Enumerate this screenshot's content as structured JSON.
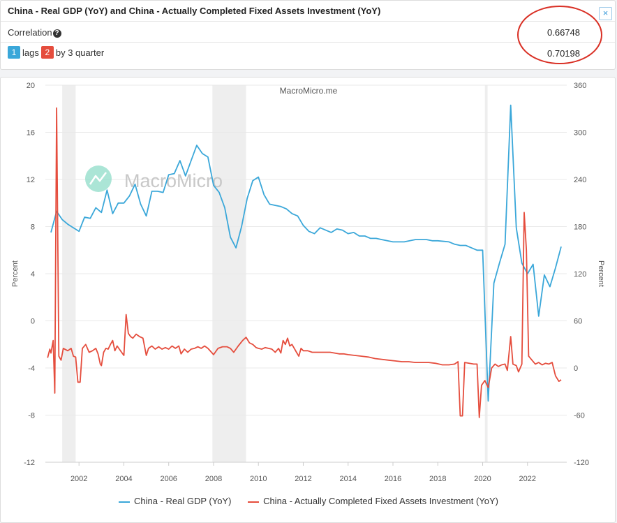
{
  "header": {
    "title": "China - Real GDP (YoY) and China - Actually Completed Fixed Assets Investment (YoY)",
    "close_label": "×",
    "correlation_label": "Correlation",
    "help_glyph": "?",
    "correlation_value": "0.66748",
    "lag_badge_1": "1",
    "lag_text_1": "lags",
    "lag_badge_2": "2",
    "lag_text_2": "by 3 quarter",
    "lag_value": "0.70198"
  },
  "colors": {
    "gdp": "#3aa7d9",
    "fai": "#e54d3d",
    "recession": "#eeeeee",
    "highlight": "#d93025"
  },
  "chart_data": {
    "type": "line",
    "watermark_top": "MacroMicro.me",
    "watermark_logo": "MacroMicro",
    "ylabel_left": "Percent",
    "ylabel_right": "Percent",
    "x_ticks": [
      "2002",
      "2004",
      "2006",
      "2008",
      "2010",
      "2012",
      "2014",
      "2016",
      "2018",
      "2020",
      "2022"
    ],
    "left_axis": {
      "min": -12,
      "max": 20,
      "ticks": [
        "-12",
        "-8",
        "-4",
        "0",
        "4",
        "8",
        "12",
        "16",
        "20"
      ]
    },
    "right_axis": {
      "min": -120,
      "max": 360,
      "ticks": [
        "-120",
        "-60",
        "0",
        "60",
        "120",
        "180",
        "240",
        "300",
        "360"
      ]
    },
    "recessions": [
      [
        2001.25,
        2001.85
      ],
      [
        2007.95,
        2009.45
      ],
      [
        2020.1,
        2020.22
      ]
    ],
    "series": [
      {
        "name": "China - Real GDP (YoY)",
        "axis": "left",
        "points": [
          [
            2000.75,
            7.5
          ],
          [
            2001.0,
            9.3
          ],
          [
            2001.25,
            8.6
          ],
          [
            2001.5,
            8.2
          ],
          [
            2001.75,
            7.9
          ],
          [
            2002.0,
            7.6
          ],
          [
            2002.25,
            8.8
          ],
          [
            2002.5,
            8.7
          ],
          [
            2002.75,
            9.6
          ],
          [
            2003.0,
            9.2
          ],
          [
            2003.25,
            11.1
          ],
          [
            2003.5,
            9.1
          ],
          [
            2003.75,
            10.0
          ],
          [
            2004.0,
            10.0
          ],
          [
            2004.25,
            10.6
          ],
          [
            2004.5,
            11.6
          ],
          [
            2004.75,
            9.9
          ],
          [
            2005.0,
            8.9
          ],
          [
            2005.25,
            11.0
          ],
          [
            2005.5,
            11.0
          ],
          [
            2005.75,
            10.9
          ],
          [
            2006.0,
            12.4
          ],
          [
            2006.25,
            12.5
          ],
          [
            2006.5,
            13.6
          ],
          [
            2006.75,
            12.3
          ],
          [
            2007.0,
            13.6
          ],
          [
            2007.25,
            14.9
          ],
          [
            2007.5,
            14.2
          ],
          [
            2007.75,
            13.9
          ],
          [
            2008.0,
            11.5
          ],
          [
            2008.25,
            10.9
          ],
          [
            2008.5,
            9.6
          ],
          [
            2008.75,
            7.1
          ],
          [
            2009.0,
            6.2
          ],
          [
            2009.25,
            8.0
          ],
          [
            2009.5,
            10.4
          ],
          [
            2009.75,
            11.9
          ],
          [
            2010.0,
            12.2
          ],
          [
            2010.25,
            10.7
          ],
          [
            2010.5,
            9.9
          ],
          [
            2010.75,
            9.8
          ],
          [
            2011.0,
            9.7
          ],
          [
            2011.25,
            9.5
          ],
          [
            2011.5,
            9.1
          ],
          [
            2011.75,
            8.9
          ],
          [
            2012.0,
            8.1
          ],
          [
            2012.25,
            7.6
          ],
          [
            2012.5,
            7.4
          ],
          [
            2012.75,
            7.9
          ],
          [
            2013.0,
            7.7
          ],
          [
            2013.25,
            7.5
          ],
          [
            2013.5,
            7.8
          ],
          [
            2013.75,
            7.7
          ],
          [
            2014.0,
            7.4
          ],
          [
            2014.25,
            7.5
          ],
          [
            2014.5,
            7.2
          ],
          [
            2014.75,
            7.2
          ],
          [
            2015.0,
            7.0
          ],
          [
            2015.25,
            7.0
          ],
          [
            2015.5,
            6.9
          ],
          [
            2015.75,
            6.8
          ],
          [
            2016.0,
            6.7
          ],
          [
            2016.5,
            6.7
          ],
          [
            2016.75,
            6.8
          ],
          [
            2017.0,
            6.9
          ],
          [
            2017.5,
            6.9
          ],
          [
            2017.75,
            6.8
          ],
          [
            2018.0,
            6.8
          ],
          [
            2018.5,
            6.7
          ],
          [
            2018.75,
            6.5
          ],
          [
            2019.0,
            6.4
          ],
          [
            2019.25,
            6.4
          ],
          [
            2019.5,
            6.2
          ],
          [
            2019.75,
            6.0
          ],
          [
            2020.0,
            6.0
          ],
          [
            2020.25,
            -6.8
          ],
          [
            2020.5,
            3.2
          ],
          [
            2020.75,
            4.9
          ],
          [
            2021.0,
            6.5
          ],
          [
            2021.25,
            18.3
          ],
          [
            2021.5,
            7.9
          ],
          [
            2021.75,
            4.9
          ],
          [
            2022.0,
            4.0
          ],
          [
            2022.25,
            4.8
          ],
          [
            2022.5,
            0.4
          ],
          [
            2022.75,
            3.9
          ],
          [
            2023.0,
            2.9
          ],
          [
            2023.25,
            4.5
          ],
          [
            2023.5,
            6.3
          ]
        ]
      },
      {
        "name": "China - Actually Completed Fixed Assets Investment (YoY)",
        "axis": "right",
        "points": [
          [
            2000.6,
            13
          ],
          [
            2000.7,
            24
          ],
          [
            2000.75,
            19
          ],
          [
            2000.85,
            35
          ],
          [
            2000.92,
            -32
          ],
          [
            2001.0,
            331
          ],
          [
            2001.1,
            15
          ],
          [
            2001.2,
            10
          ],
          [
            2001.3,
            25
          ],
          [
            2001.5,
            22
          ],
          [
            2001.65,
            25
          ],
          [
            2001.75,
            15
          ],
          [
            2001.85,
            14
          ],
          [
            2001.95,
            -18
          ],
          [
            2002.05,
            -18
          ],
          [
            2002.15,
            25
          ],
          [
            2002.3,
            30
          ],
          [
            2002.45,
            20
          ],
          [
            2002.6,
            22
          ],
          [
            2002.75,
            25
          ],
          [
            2002.85,
            18
          ],
          [
            2002.95,
            5
          ],
          [
            2003.0,
            3
          ],
          [
            2003.1,
            20
          ],
          [
            2003.2,
            25
          ],
          [
            2003.3,
            24
          ],
          [
            2003.4,
            30
          ],
          [
            2003.5,
            35
          ],
          [
            2003.6,
            22
          ],
          [
            2003.7,
            28
          ],
          [
            2003.8,
            24
          ],
          [
            2003.9,
            20
          ],
          [
            2004.0,
            16
          ],
          [
            2004.1,
            68
          ],
          [
            2004.2,
            44
          ],
          [
            2004.3,
            40
          ],
          [
            2004.4,
            38
          ],
          [
            2004.55,
            43
          ],
          [
            2004.7,
            40
          ],
          [
            2004.85,
            38
          ],
          [
            2005.0,
            16
          ],
          [
            2005.1,
            25
          ],
          [
            2005.25,
            28
          ],
          [
            2005.4,
            24
          ],
          [
            2005.55,
            27
          ],
          [
            2005.7,
            24
          ],
          [
            2005.85,
            26
          ],
          [
            2006.0,
            24
          ],
          [
            2006.15,
            28
          ],
          [
            2006.3,
            25
          ],
          [
            2006.45,
            28
          ],
          [
            2006.55,
            18
          ],
          [
            2006.7,
            24
          ],
          [
            2006.85,
            20
          ],
          [
            2007.0,
            24
          ],
          [
            2007.15,
            25
          ],
          [
            2007.3,
            27
          ],
          [
            2007.45,
            25
          ],
          [
            2007.6,
            28
          ],
          [
            2007.75,
            25
          ],
          [
            2008.0,
            17
          ],
          [
            2008.2,
            25
          ],
          [
            2008.4,
            27
          ],
          [
            2008.6,
            27
          ],
          [
            2008.75,
            25
          ],
          [
            2008.9,
            20
          ],
          [
            2009.1,
            28
          ],
          [
            2009.3,
            35
          ],
          [
            2009.45,
            39
          ],
          [
            2009.6,
            32
          ],
          [
            2009.75,
            30
          ],
          [
            2009.9,
            26
          ],
          [
            2010.0,
            25
          ],
          [
            2010.15,
            24
          ],
          [
            2010.3,
            26
          ],
          [
            2010.45,
            25
          ],
          [
            2010.6,
            24
          ],
          [
            2010.75,
            20
          ],
          [
            2010.9,
            25
          ],
          [
            2011.0,
            19
          ],
          [
            2011.1,
            35
          ],
          [
            2011.2,
            30
          ],
          [
            2011.3,
            38
          ],
          [
            2011.4,
            28
          ],
          [
            2011.5,
            30
          ],
          [
            2011.6,
            25
          ],
          [
            2011.7,
            20
          ],
          [
            2011.8,
            15
          ],
          [
            2011.9,
            25
          ],
          [
            2012.0,
            22
          ],
          [
            2012.2,
            22
          ],
          [
            2012.4,
            20
          ],
          [
            2012.6,
            20
          ],
          [
            2012.8,
            20
          ],
          [
            2013.0,
            20
          ],
          [
            2013.2,
            20
          ],
          [
            2013.4,
            19
          ],
          [
            2013.6,
            18
          ],
          [
            2013.8,
            18
          ],
          [
            2014.0,
            17
          ],
          [
            2014.3,
            16
          ],
          [
            2014.6,
            15
          ],
          [
            2014.9,
            14
          ],
          [
            2015.2,
            12
          ],
          [
            2015.5,
            11
          ],
          [
            2015.8,
            10
          ],
          [
            2016.1,
            9
          ],
          [
            2016.4,
            8
          ],
          [
            2016.7,
            8
          ],
          [
            2017.0,
            7
          ],
          [
            2017.3,
            7
          ],
          [
            2017.6,
            7
          ],
          [
            2017.9,
            6
          ],
          [
            2018.2,
            4
          ],
          [
            2018.5,
            4
          ],
          [
            2018.75,
            5
          ],
          [
            2018.9,
            8
          ],
          [
            2019.0,
            -61
          ],
          [
            2019.1,
            -61
          ],
          [
            2019.2,
            7
          ],
          [
            2019.4,
            6
          ],
          [
            2019.6,
            5
          ],
          [
            2019.75,
            5
          ],
          [
            2019.85,
            -63
          ],
          [
            2019.95,
            -22
          ],
          [
            2020.1,
            -16
          ],
          [
            2020.25,
            -25
          ],
          [
            2020.4,
            0
          ],
          [
            2020.55,
            5
          ],
          [
            2020.7,
            2
          ],
          [
            2020.85,
            4
          ],
          [
            2021.0,
            5
          ],
          [
            2021.1,
            -3
          ],
          [
            2021.25,
            40
          ],
          [
            2021.35,
            5
          ],
          [
            2021.5,
            3
          ],
          [
            2021.6,
            -5
          ],
          [
            2021.75,
            5
          ],
          [
            2021.85,
            198
          ],
          [
            2021.95,
            150
          ],
          [
            2022.05,
            15
          ],
          [
            2022.2,
            10
          ],
          [
            2022.35,
            5
          ],
          [
            2022.5,
            7
          ],
          [
            2022.65,
            4
          ],
          [
            2022.8,
            6
          ],
          [
            2022.95,
            5
          ],
          [
            2023.1,
            7
          ],
          [
            2023.25,
            -10
          ],
          [
            2023.4,
            -17
          ],
          [
            2023.5,
            -15
          ]
        ]
      }
    ]
  }
}
